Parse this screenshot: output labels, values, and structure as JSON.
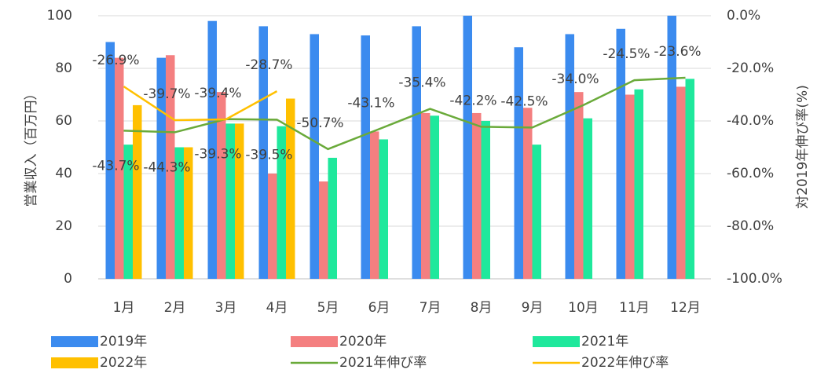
{
  "chart_data": {
    "type": "bar",
    "categories": [
      "1月",
      "2月",
      "3月",
      "4月",
      "5月",
      "6月",
      "7月",
      "8月",
      "9月",
      "10月",
      "11月",
      "12月"
    ],
    "ylabel": "営業収入（百万円）",
    "y2label": "対2019年伸び率(%)",
    "ylim": [
      0,
      100
    ],
    "yticks": [
      0,
      20,
      40,
      60,
      80,
      100
    ],
    "y2lim": [
      -100,
      0
    ],
    "y2ticks": [
      {
        "value": -100,
        "label": "-100.0%"
      },
      {
        "value": -80,
        "label": "-80.0%"
      },
      {
        "value": -60,
        "label": "-60.0%"
      },
      {
        "value": -40,
        "label": "-40.0%"
      },
      {
        "value": -20,
        "label": "-20.0%"
      },
      {
        "value": 0,
        "label": "0.0%"
      }
    ],
    "grid": true,
    "legend": "bottom",
    "series": [
      {
        "name": "2019年",
        "type": "bar",
        "color": "#3b8bef",
        "values": [
          90,
          84,
          98,
          96,
          93,
          92.5,
          96,
          100,
          88,
          93,
          95,
          100
        ]
      },
      {
        "name": "2020年",
        "type": "bar",
        "color": "#f47f80",
        "values": [
          84,
          85,
          71,
          40,
          37,
          56,
          63,
          63,
          65,
          71,
          70,
          73
        ]
      },
      {
        "name": "2021年",
        "type": "bar",
        "color": "#1fe89c",
        "values": [
          51,
          50,
          59,
          58,
          46,
          53,
          62,
          60,
          51,
          61,
          72,
          76
        ]
      },
      {
        "name": "2022年",
        "type": "bar",
        "color": "#ffc000",
        "values": [
          66,
          50,
          59,
          68.5,
          null,
          null,
          null,
          null,
          null,
          null,
          null,
          null
        ]
      },
      {
        "name": "2021年伸び率",
        "type": "line",
        "axis": "y2",
        "color": "#6aaa3a",
        "values": [
          -43.7,
          -44.3,
          -39.3,
          -39.5,
          -50.7,
          -43.1,
          -35.4,
          -42.2,
          -42.5,
          -34.0,
          -24.5,
          -23.6
        ],
        "value_labels": [
          "-43.7%",
          "-44.3%",
          "-39.3%",
          "-39.5%",
          "-50.7%",
          "-43.1%",
          "-35.4%",
          "-42.2%",
          "-42.5%",
          "-34.0%",
          "-24.5%",
          "-23.6%"
        ]
      },
      {
        "name": "2022年伸び率",
        "type": "line",
        "axis": "y2",
        "color": "#ffc000",
        "values": [
          -26.9,
          -39.7,
          -39.4,
          -28.7,
          null,
          null,
          null,
          null,
          null,
          null,
          null,
          null
        ],
        "value_labels": [
          "-26.9%",
          "-39.7%",
          "-39.4%",
          "-28.7%",
          null,
          null,
          null,
          null,
          null,
          null,
          null,
          null
        ]
      }
    ]
  }
}
